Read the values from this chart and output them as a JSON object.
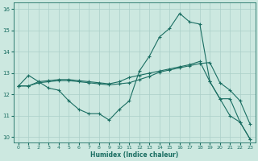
{
  "xlabel": "Humidex (Indice chaleur)",
  "bg_color": "#cce8e0",
  "grid_color": "#aacfc8",
  "line_color": "#1a6e62",
  "xlim": [
    -0.5,
    23.5
  ],
  "ylim": [
    9.75,
    16.3
  ],
  "yticks": [
    10,
    11,
    12,
    13,
    14,
    15,
    16
  ],
  "xticks": [
    0,
    1,
    2,
    3,
    4,
    5,
    6,
    7,
    8,
    9,
    10,
    11,
    12,
    13,
    14,
    15,
    16,
    17,
    18,
    19,
    20,
    21,
    22,
    23
  ],
  "line1_x": [
    0,
    1,
    2,
    3,
    4,
    5,
    6,
    7,
    8,
    9,
    10,
    11,
    12,
    13,
    14,
    15,
    16,
    17,
    18,
    19,
    20,
    21,
    22,
    23
  ],
  "line1_y": [
    12.4,
    12.9,
    12.6,
    12.3,
    12.2,
    11.7,
    11.3,
    11.1,
    11.1,
    10.8,
    11.3,
    11.7,
    13.1,
    13.8,
    14.7,
    15.1,
    15.8,
    15.4,
    15.3,
    12.6,
    11.8,
    11.8,
    10.7,
    9.9
  ],
  "line2_x": [
    0,
    1,
    2,
    3,
    4,
    5,
    6,
    7,
    8,
    9,
    10,
    11,
    12,
    13,
    14,
    15,
    16,
    17,
    18,
    19,
    20,
    21,
    22,
    23
  ],
  "line2_y": [
    12.4,
    12.4,
    12.6,
    12.65,
    12.7,
    12.7,
    12.65,
    12.6,
    12.55,
    12.5,
    12.6,
    12.8,
    12.9,
    13.0,
    13.1,
    13.2,
    13.3,
    13.4,
    13.55,
    12.6,
    11.8,
    11.0,
    10.7,
    9.9
  ],
  "line3_x": [
    0,
    1,
    2,
    3,
    4,
    5,
    6,
    7,
    8,
    9,
    10,
    11,
    12,
    13,
    14,
    15,
    16,
    17,
    18,
    19,
    20,
    21,
    22,
    23
  ],
  "line3_y": [
    12.4,
    12.4,
    12.55,
    12.6,
    12.65,
    12.65,
    12.6,
    12.55,
    12.5,
    12.45,
    12.5,
    12.55,
    12.7,
    12.85,
    13.05,
    13.15,
    13.25,
    13.35,
    13.45,
    13.5,
    12.55,
    12.2,
    11.7,
    10.6
  ]
}
